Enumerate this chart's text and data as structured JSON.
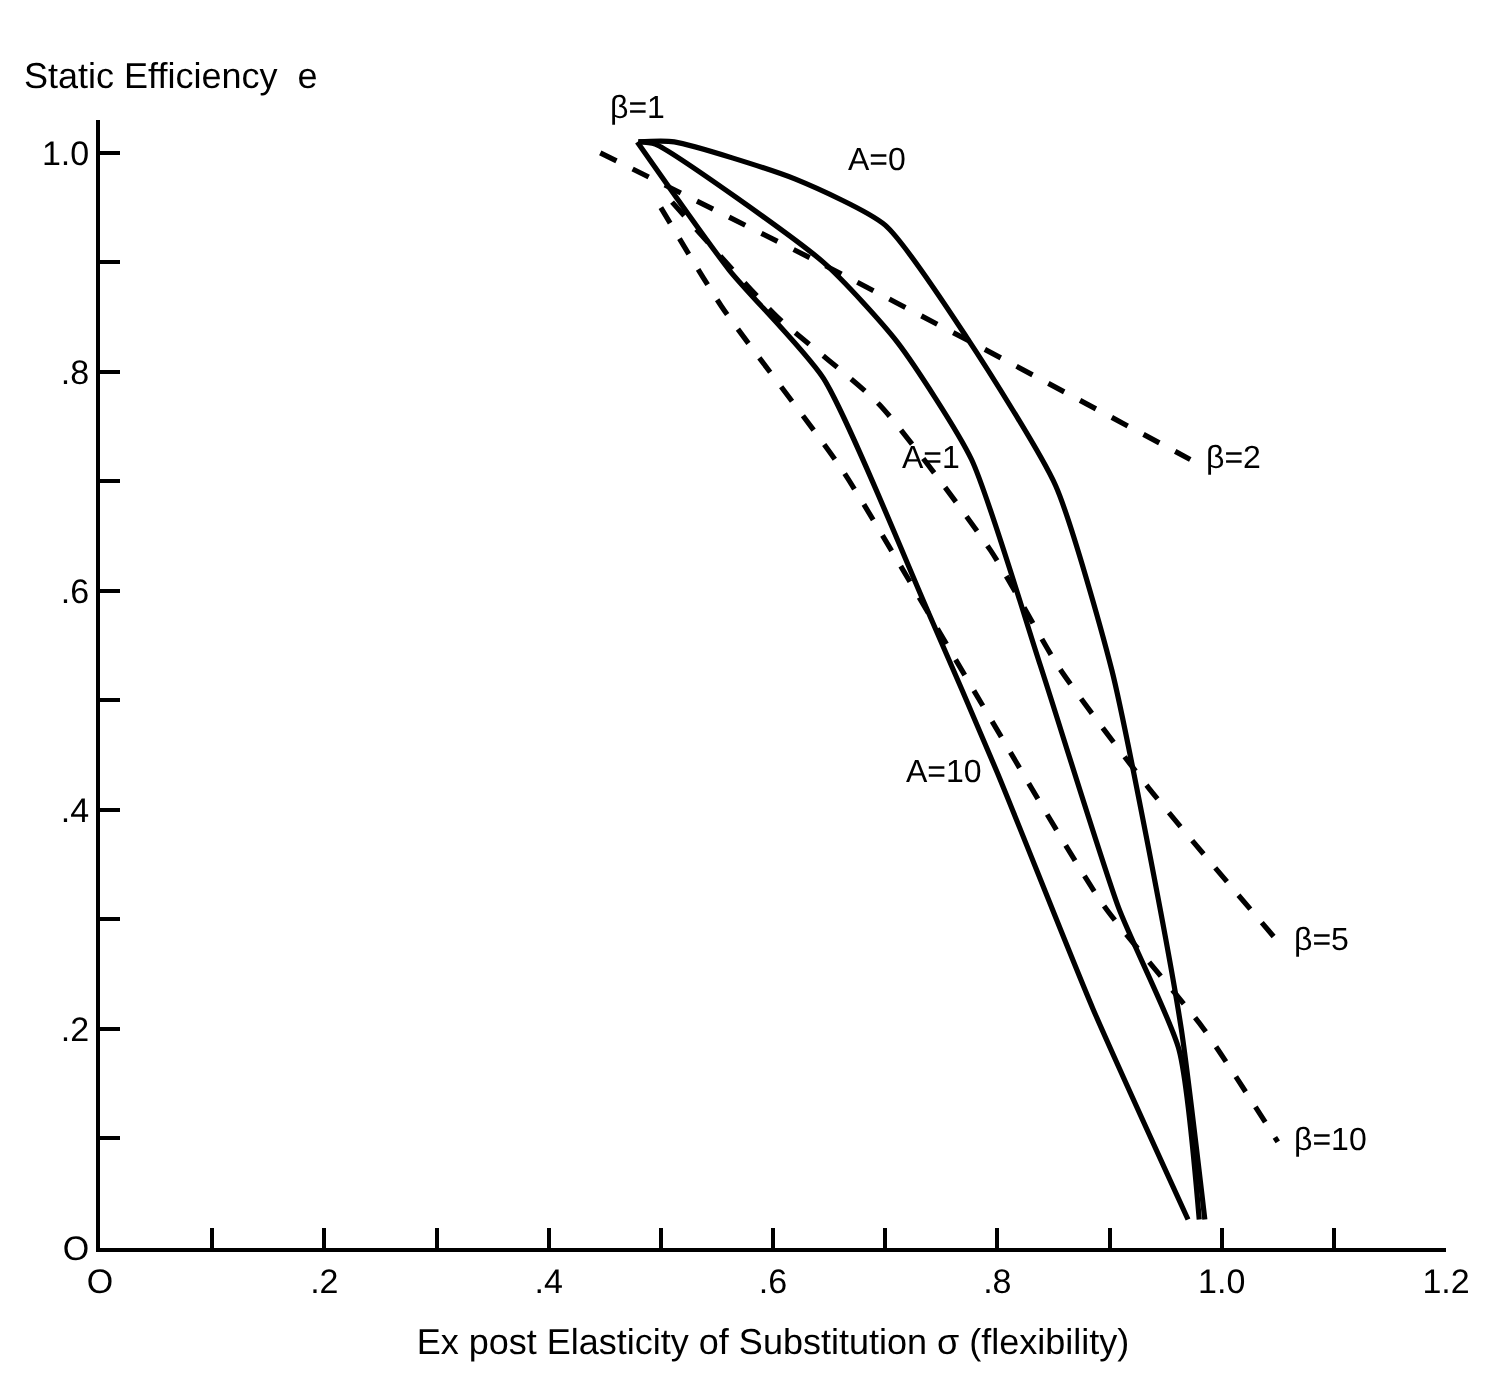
{
  "chart_data": {
    "type": "line",
    "xlabel": "Ex post Elasticity of Substitution σ (flexibility)",
    "ylabel": "Static Efficiency  e",
    "xlim": [
      0,
      1.2
    ],
    "ylim": [
      0,
      1.03
    ],
    "xticks": [
      {
        "value": 0,
        "label": "O"
      },
      {
        "value": 0.1,
        "label": null
      },
      {
        "value": 0.2,
        "label": ".2"
      },
      {
        "value": 0.3,
        "label": null
      },
      {
        "value": 0.4,
        "label": ".4"
      },
      {
        "value": 0.5,
        "label": null
      },
      {
        "value": 0.6,
        "label": ".6"
      },
      {
        "value": 0.7,
        "label": null
      },
      {
        "value": 0.8,
        "label": ".8"
      },
      {
        "value": 0.9,
        "label": null
      },
      {
        "value": 1.0,
        "label": "1.0"
      },
      {
        "value": 1.1,
        "label": null
      },
      {
        "value": 1.2,
        "label": "1.2"
      }
    ],
    "yticks": [
      {
        "value": 0,
        "label": "O"
      },
      {
        "value": 0.1,
        "label": null
      },
      {
        "value": 0.2,
        "label": ".2"
      },
      {
        "value": 0.3,
        "label": null
      },
      {
        "value": 0.4,
        "label": ".4"
      },
      {
        "value": 0.5,
        "label": null
      },
      {
        "value": 0.6,
        "label": ".6"
      },
      {
        "value": 0.7,
        "label": null
      },
      {
        "value": 0.8,
        "label": ".8"
      },
      {
        "value": 0.9,
        "label": null
      },
      {
        "value": 1.0,
        "label": "1.0"
      }
    ],
    "legend": false,
    "marker": "none",
    "series": [
      {
        "name": "A=0",
        "color": "#000000",
        "line_style": "solid",
        "x": [
          0.48,
          0.512,
          0.62,
          0.7,
          0.773,
          0.852,
          0.902,
          0.935,
          0.964,
          0.985
        ],
        "values": [
          1.01,
          1.01,
          0.976,
          0.934,
          0.831,
          0.696,
          0.528,
          0.364,
          0.2,
          0.026
        ]
      },
      {
        "name": "A=1",
        "color": "#000000",
        "line_style": "solid",
        "x": [
          0.48,
          0.495,
          0.645,
          0.711,
          0.777,
          0.838,
          0.908,
          0.962,
          0.98
        ],
        "values": [
          1.01,
          1.008,
          0.9,
          0.827,
          0.72,
          0.533,
          0.311,
          0.181,
          0.026
        ]
      },
      {
        "name": "A=10",
        "color": "#000000",
        "line_style": "solid",
        "x": [
          0.479,
          0.561,
          0.645,
          0.737,
          0.8,
          0.885,
          0.97
        ],
        "values": [
          1.01,
          0.893,
          0.794,
          0.584,
          0.434,
          0.219,
          0.026
        ]
      },
      {
        "name": "β=2",
        "color": "#000000",
        "line_style": "dashed",
        "x": [
          0.446,
          0.641,
          0.777,
          0.972
        ],
        "values": [
          1.0,
          0.9,
          0.827,
          0.72
        ]
      },
      {
        "name": "β=5",
        "color": "#000000",
        "line_style": "dashed",
        "x": [
          0.51,
          0.603,
          0.695,
          0.794,
          0.855,
          0.935,
          1.05
        ],
        "values": [
          0.955,
          0.851,
          0.77,
          0.637,
          0.53,
          0.42,
          0.28
        ]
      },
      {
        "name": "β=10",
        "color": "#000000",
        "line_style": "dashed",
        "x": [
          0.5,
          0.554,
          0.662,
          0.786,
          0.894,
          0.984,
          1.05
        ],
        "values": [
          0.95,
          0.86,
          0.71,
          0.497,
          0.314,
          0.2,
          0.097
        ]
      }
    ],
    "annotations": [
      "β=1"
    ]
  }
}
